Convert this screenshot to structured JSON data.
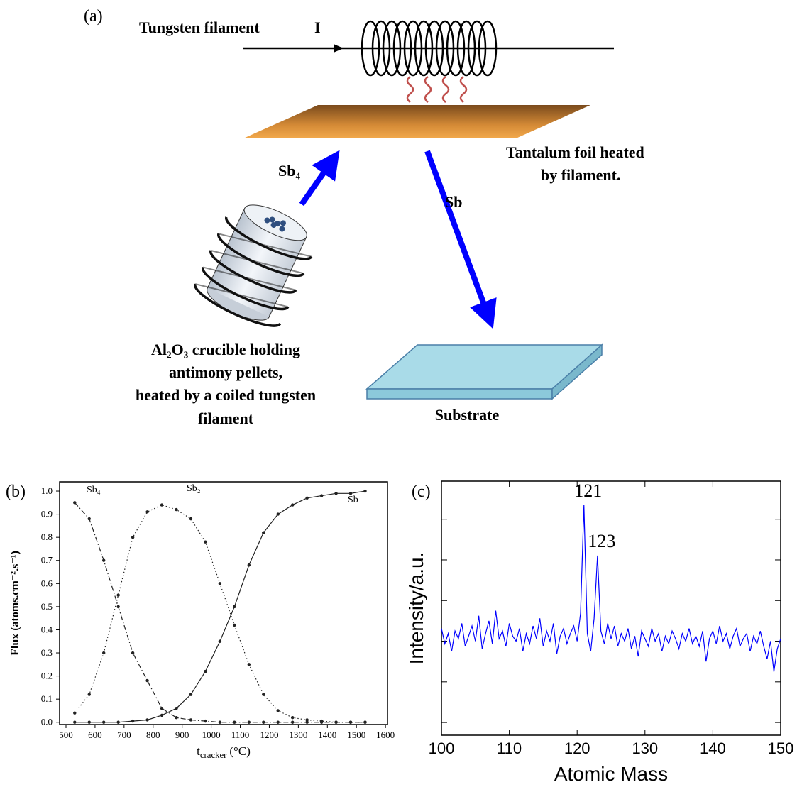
{
  "diagram": {
    "label": "(a)",
    "filament_label": "Tungsten filament",
    "current_label": "I",
    "foil_label": [
      "Tantalum foil heated",
      "by filament."
    ],
    "sb4_label": "Sb₄",
    "sb_label": "Sb",
    "crucible_label": [
      "Al₂O₃ crucible holding",
      "antimony pellets,",
      "heated by a coiled tungsten",
      "filament"
    ],
    "substrate_label": "Substrate"
  },
  "chart_data": [
    {
      "type": "line",
      "label": "(b)",
      "y_label": "Flux (atoms.cm⁻².s⁻¹)",
      "x_label": [
        "t",
        "cracker",
        "(°C)"
      ],
      "x": [
        530,
        580,
        630,
        680,
        730,
        780,
        830,
        880,
        930,
        980,
        1030,
        1080,
        1130,
        1180,
        1230,
        1280,
        1330,
        1380,
        1430,
        1480,
        1530
      ],
      "series": [
        {
          "name": "Sb₄",
          "color": "#222222",
          "style": "dashdot",
          "values": [
            0.95,
            0.88,
            0.7,
            0.5,
            0.3,
            0.18,
            0.06,
            0.02,
            0.01,
            0.005,
            0,
            0,
            0,
            0,
            0,
            0,
            0,
            0,
            0,
            0,
            0
          ]
        },
        {
          "name": "Sb₂",
          "color": "#222222",
          "style": "dotted",
          "values": [
            0.04,
            0.12,
            0.3,
            0.55,
            0.8,
            0.91,
            0.94,
            0.92,
            0.88,
            0.78,
            0.6,
            0.42,
            0.25,
            0.12,
            0.05,
            0.02,
            0.01,
            0.005,
            0,
            0,
            0
          ]
        },
        {
          "name": "Sb",
          "color": "#222222",
          "style": "solid",
          "values": [
            0,
            0,
            0,
            0,
            0.005,
            0.01,
            0.03,
            0.06,
            0.12,
            0.22,
            0.35,
            0.5,
            0.68,
            0.82,
            0.9,
            0.94,
            0.97,
            0.98,
            0.99,
            0.99,
            1.0
          ]
        }
      ],
      "markers": true,
      "grid": false,
      "xlim": [
        478,
        1607
      ],
      "xticks": [
        500,
        600,
        700,
        800,
        900,
        1000,
        1100,
        1200,
        1300,
        1400,
        1500,
        1600
      ],
      "ylim": [
        -0.01,
        1.04
      ],
      "yticks": [
        {
          "value": 0,
          "label": "0.0"
        },
        0.1,
        0.2,
        0.3,
        0.4,
        0.5,
        0.6,
        0.7,
        0.8,
        0.9,
        {
          "value": 1,
          "label": "1.0"
        }
      ]
    },
    {
      "type": "line",
      "label": "(c)",
      "y_label": "Intensity/a.u.",
      "x_label": [
        "Atomic Mass"
      ],
      "x": [
        100,
        100.5,
        101,
        101.5,
        102,
        102.5,
        103,
        103.5,
        104,
        104.5,
        105,
        105.5,
        106,
        106.5,
        107,
        107.5,
        108,
        108.5,
        109,
        109.5,
        110,
        110.5,
        111,
        111.5,
        112,
        112.5,
        113,
        113.5,
        114,
        114.5,
        115,
        115.5,
        116,
        116.5,
        117,
        117.5,
        118,
        118.5,
        119,
        119.5,
        120,
        120.5,
        121,
        121.5,
        122,
        122.5,
        123,
        123.5,
        124,
        124.5,
        125,
        125.5,
        126,
        126.5,
        127,
        127.5,
        128,
        128.5,
        129,
        129.5,
        130,
        130.5,
        131,
        131.5,
        132,
        132.5,
        133,
        133.5,
        134,
        134.5,
        135,
        135.5,
        136,
        136.5,
        137,
        137.5,
        138,
        138.5,
        139,
        139.5,
        140,
        140.5,
        141,
        141.5,
        142,
        142.5,
        143,
        143.5,
        144,
        144.5,
        145,
        145.5,
        146,
        146.5,
        147,
        147.5,
        148,
        148.5,
        149,
        149.5,
        150
      ],
      "series": [
        {
          "name": null,
          "color": "#0000ff",
          "style": "solid",
          "values": [
            0.42,
            0.36,
            0.4,
            0.33,
            0.41,
            0.38,
            0.44,
            0.35,
            0.39,
            0.43,
            0.37,
            0.47,
            0.34,
            0.4,
            0.45,
            0.36,
            0.49,
            0.38,
            0.41,
            0.35,
            0.44,
            0.39,
            0.37,
            0.42,
            0.33,
            0.4,
            0.36,
            0.43,
            0.38,
            0.46,
            0.35,
            0.41,
            0.37,
            0.44,
            0.32,
            0.39,
            0.42,
            0.36,
            0.4,
            0.43,
            0.37,
            0.48,
            0.905,
            0.4,
            0.33,
            0.46,
            0.707,
            0.41,
            0.36,
            0.44,
            0.38,
            0.43,
            0.35,
            0.4,
            0.37,
            0.42,
            0.34,
            0.39,
            0.31,
            0.41,
            0.38,
            0.35,
            0.42,
            0.37,
            0.4,
            0.33,
            0.39,
            0.36,
            0.41,
            0.38,
            0.34,
            0.4,
            0.37,
            0.42,
            0.36,
            0.39,
            0.35,
            0.41,
            0.29,
            0.38,
            0.41,
            0.36,
            0.43,
            0.37,
            0.4,
            0.34,
            0.39,
            0.42,
            0.35,
            0.38,
            0.4,
            0.33,
            0.39,
            0.36,
            0.41,
            0.35,
            0.3,
            0.37,
            0.25,
            0.34,
            0.38
          ]
        }
      ],
      "annotations": [
        {
          "text": "121",
          "x": 121,
          "y": 0.905
        },
        {
          "text": "123",
          "x": 123,
          "y": 0.707
        }
      ],
      "markers": false,
      "grid": false,
      "show_ytick_labels": false,
      "xlim": [
        100,
        150
      ],
      "xticks": [
        100,
        110,
        120,
        130,
        140,
        150
      ],
      "ylim": [
        0,
        1
      ],
      "yticks": [
        0.05,
        0.21,
        0.37,
        0.53,
        0.69,
        0.85
      ]
    }
  ]
}
